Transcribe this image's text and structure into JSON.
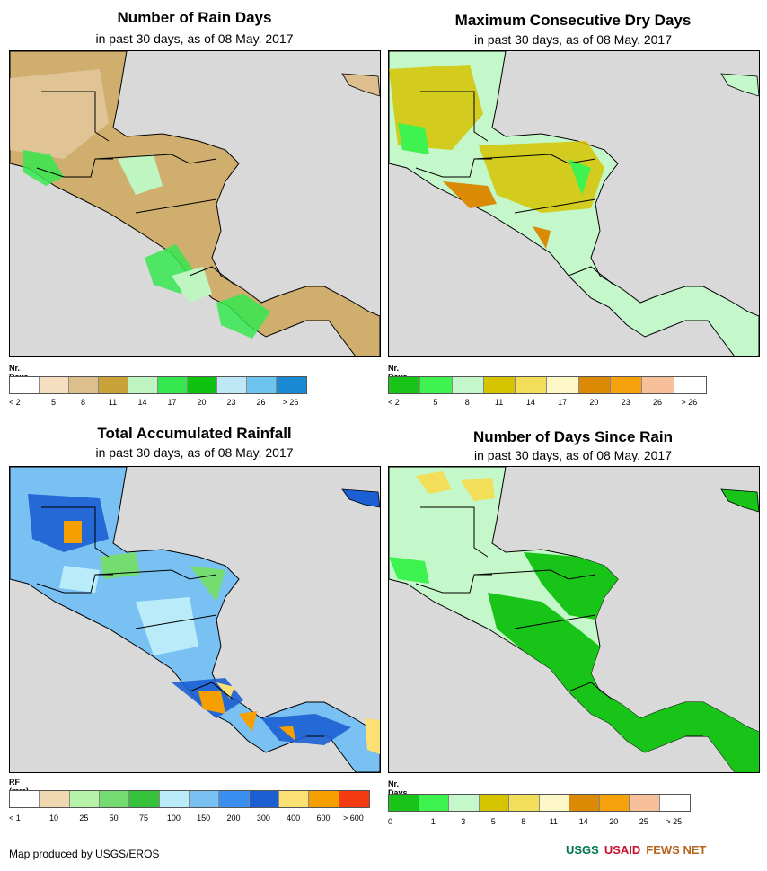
{
  "panels": {
    "rain_days": {
      "title": "Number of Rain Days",
      "subtitle": "in past 30 days, as of 08 May. 2017",
      "legend_title": "Nr. Days",
      "legend_labels": [
        "< 2",
        "5",
        "8",
        "11",
        "14",
        "17",
        "20",
        "23",
        "26",
        "> 26"
      ],
      "legend_colors": [
        "#ffffff",
        "#f6dfc0",
        "#dcbf8c",
        "#c9a23a",
        "#bff5c0",
        "#35e84f",
        "#10c210",
        "#bfe8f7",
        "#6cc4ef",
        "#1a8ad4"
      ]
    },
    "dry_days": {
      "title": "Maximum Consecutive Dry Days",
      "subtitle": "in past 30 days, as of 08 May. 2017",
      "legend_title": "Nr. Days",
      "legend_labels": [
        "< 2",
        "5",
        "8",
        "11",
        "14",
        "17",
        "20",
        "23",
        "26",
        "> 26"
      ],
      "legend_colors": [
        "#17c417",
        "#3ef24f",
        "#c4f7c9",
        "#d6c400",
        "#f2de58",
        "#fdf7c8",
        "#db8a05",
        "#f7a20d",
        "#f8c09a",
        "#ffffff"
      ]
    },
    "rainfall": {
      "title": "Total Accumulated Rainfall",
      "subtitle": "in past 30 days, as of 08 May. 2017",
      "legend_title": "RF (mm)",
      "legend_labels": [
        "< 1",
        "10",
        "25",
        "50",
        "75",
        "100",
        "150",
        "200",
        "300",
        "400",
        "600",
        "> 600"
      ],
      "legend_colors": [
        "#ffffff",
        "#f0d8b0",
        "#b6f3a8",
        "#74dc70",
        "#36c23b",
        "#b9ecf8",
        "#79c0f3",
        "#3a8ef0",
        "#1c5fd3",
        "#fbe074",
        "#f5a000",
        "#f43a10"
      ]
    },
    "since_rain": {
      "title": "Number of Days Since Rain",
      "subtitle": "in past 30 days, as of 08 May. 2017",
      "legend_title": "Nr. Days",
      "legend_labels": [
        "0",
        "1",
        "3",
        "5",
        "8",
        "11",
        "14",
        "20",
        "25",
        "> 25"
      ],
      "legend_colors": [
        "#17c417",
        "#3ef24f",
        "#c4f7c9",
        "#d6c400",
        "#f2de58",
        "#fdf7c8",
        "#db8a05",
        "#f7a20d",
        "#f8c09a",
        "#ffffff"
      ]
    }
  },
  "footer": {
    "credit": "Map produced by USGS/EROS",
    "logos": [
      "USGS",
      "USAID",
      "FEWS NET"
    ]
  },
  "colors": {
    "ocean": "#d9d9d9",
    "border": "#000000"
  }
}
